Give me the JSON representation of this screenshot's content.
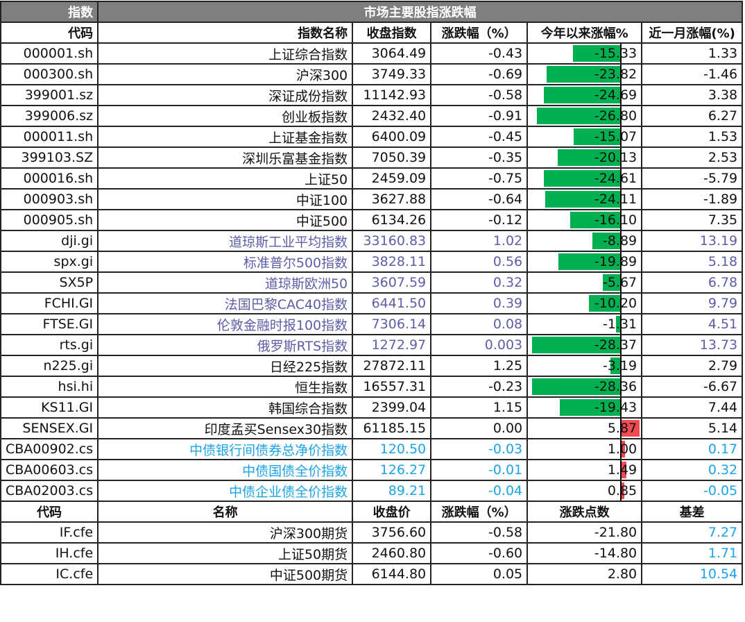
{
  "title_left": "指数",
  "title": "市场主要股指涨跌幅",
  "headers": [
    "代码",
    "指数名称",
    "收盘指数",
    "涨跌幅（%）",
    "今年以来涨幅%",
    "近一月涨幅(%)"
  ],
  "colors": {
    "black": "#111111",
    "global": "#5b5ea6",
    "bond": "#1aa3e8",
    "bar_negative": "#00b050",
    "bar_positive": "#f04b52"
  },
  "rows": [
    [
      "000001.sh",
      "上证综合指数",
      "3064.49",
      "-0.43",
      "-15.33",
      "1.33",
      "black"
    ],
    [
      "000300.sh",
      "沪深300",
      "3749.33",
      "-0.69",
      "-23.82",
      "-1.46",
      "black"
    ],
    [
      "399001.sz",
      "深证成份指数",
      "11142.93",
      "-0.58",
      "-24.69",
      "3.38",
      "black"
    ],
    [
      "399006.sz",
      "创业板指数",
      "2432.40",
      "-0.91",
      "-26.80",
      "6.27",
      "black"
    ],
    [
      "000011.sh",
      "上证基金指数",
      "6400.09",
      "-0.45",
      "-15.07",
      "1.53",
      "black"
    ],
    [
      "399103.SZ",
      "深圳乐富基金指数",
      "7050.39",
      "-0.35",
      "-20.13",
      "2.53",
      "black"
    ],
    [
      "000016.sh",
      "上证50",
      "2459.09",
      "-0.75",
      "-24.61",
      "-5.79",
      "black"
    ],
    [
      "000903.sh",
      "中证100",
      "3627.88",
      "-0.64",
      "-24.11",
      "-1.89",
      "black"
    ],
    [
      "000905.sh",
      "中证500",
      "6134.26",
      "-0.12",
      "-16.10",
      "7.35",
      "black"
    ],
    [
      "dji.gi",
      "道琼斯工业平均指数",
      "33160.83",
      "1.02",
      "-8.89",
      "13.19",
      "global"
    ],
    [
      "spx.gi",
      "标准普尔500指数",
      "3828.11",
      "0.56",
      "-19.89",
      "5.18",
      "global"
    ],
    [
      "SX5P",
      "道琼斯欧洲50",
      "3607.59",
      "0.32",
      "-5.67",
      "6.78",
      "global"
    ],
    [
      "FCHI.GI",
      "法国巴黎CAC40指数",
      "6441.50",
      "0.39",
      "-10.20",
      "9.79",
      "global"
    ],
    [
      "FTSE.GI",
      "伦敦金融时报100指数",
      "7306.14",
      "0.08",
      "-1.31",
      "4.51",
      "global"
    ],
    [
      "rts.gi",
      "俄罗斯RTS指数",
      "1272.97",
      "0.003",
      "-28.37",
      "13.73",
      "global"
    ],
    [
      "n225.gi",
      "日经225指数",
      "27872.11",
      "1.25",
      "-3.19",
      "2.79",
      "black"
    ],
    [
      "hsi.hi",
      "恒生指数",
      "16557.31",
      "-0.23",
      "-28.36",
      "-6.67",
      "black"
    ],
    [
      "KS11.GI",
      "韩国综合指数",
      "2399.04",
      "1.15",
      "-19.43",
      "7.44",
      "black"
    ],
    [
      "SENSEX.GI",
      "印度孟买Sensex30指数",
      "61185.15",
      "0.00",
      "5.87",
      "5.14",
      "black"
    ],
    [
      "CBA00902.cs",
      "中债银行间债券总净价指数",
      "120.50",
      "-0.03",
      "1.00",
      "0.17",
      "bond"
    ],
    [
      "CBA00603.cs",
      "中债国债全价指数",
      "126.27",
      "-0.01",
      "1.49",
      "0.32",
      "bond"
    ],
    [
      "CBA02003.cs",
      "中债企业债全价指数",
      "89.21",
      "-0.04",
      "0.85",
      "-0.05",
      "bond"
    ]
  ],
  "futures_headers": [
    "代码",
    "名称",
    "收盘价",
    "涨跌幅（%）",
    "涨跌点数",
    "基差"
  ],
  "futures": [
    [
      "IF.cfe",
      "沪深300期货",
      "3756.60",
      "-0.58",
      "-21.80",
      "7.27"
    ],
    [
      "IH.cfe",
      "上证50期货",
      "2460.80",
      "-0.60",
      "-14.80",
      "1.71"
    ],
    [
      "IC.cfe",
      "中证500期货",
      "6144.80",
      "0.05",
      "2.80",
      "10.54"
    ]
  ]
}
